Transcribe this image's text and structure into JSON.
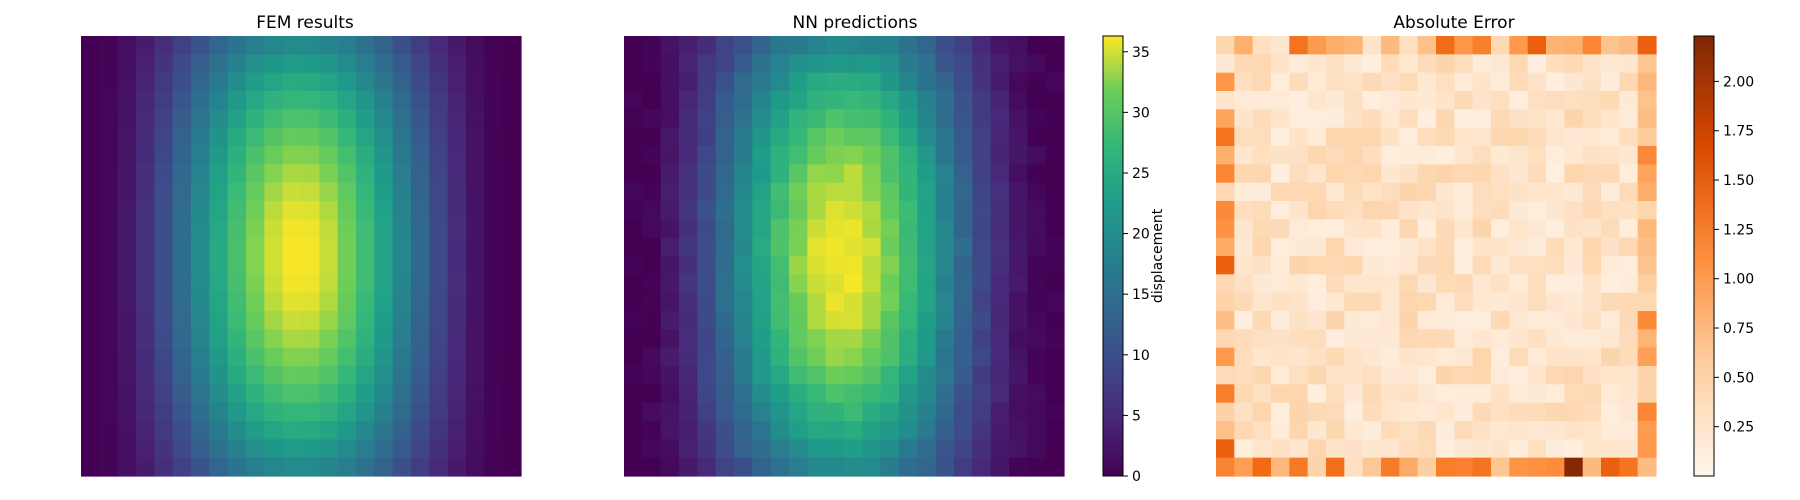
{
  "chart_data": [
    {
      "type": "heatmap",
      "title": "FEM results",
      "grid": [
        24,
        24
      ],
      "colormap": "viridis",
      "value_range": [
        0,
        36
      ],
      "pattern": "dome peak ~36 near center-right; dark minima bands near left and right edges",
      "axes_visible": false
    },
    {
      "type": "heatmap",
      "title": "NN predictions",
      "grid": [
        24,
        24
      ],
      "colormap": "viridis",
      "value_range": [
        0,
        36
      ],
      "axes_visible": false,
      "colorbar": {
        "label": "displacement",
        "ticks": [
          "0",
          "5",
          "10",
          "15",
          "20",
          "25",
          "30",
          "35"
        ],
        "tick_values": [
          0,
          5,
          10,
          15,
          20,
          25,
          30,
          35
        ],
        "range": [
          0,
          36.3
        ]
      }
    },
    {
      "type": "heatmap",
      "title": "Absolute Error",
      "grid": [
        24,
        24
      ],
      "colormap": "Oranges",
      "value_range": [
        0,
        2.23
      ],
      "pattern": "mostly low (0.1-0.5) with higher errors along edges, max ~2.2 near bottom",
      "axes_visible": false,
      "colorbar": {
        "label": "",
        "ticks": [
          "0.25",
          "0.50",
          "0.75",
          "1.00",
          "1.25",
          "1.50",
          "1.75",
          "2.00"
        ],
        "tick_values": [
          0.25,
          0.5,
          0.75,
          1.0,
          1.25,
          1.5,
          1.75,
          2.0
        ],
        "range": [
          0,
          2.23
        ]
      }
    }
  ]
}
